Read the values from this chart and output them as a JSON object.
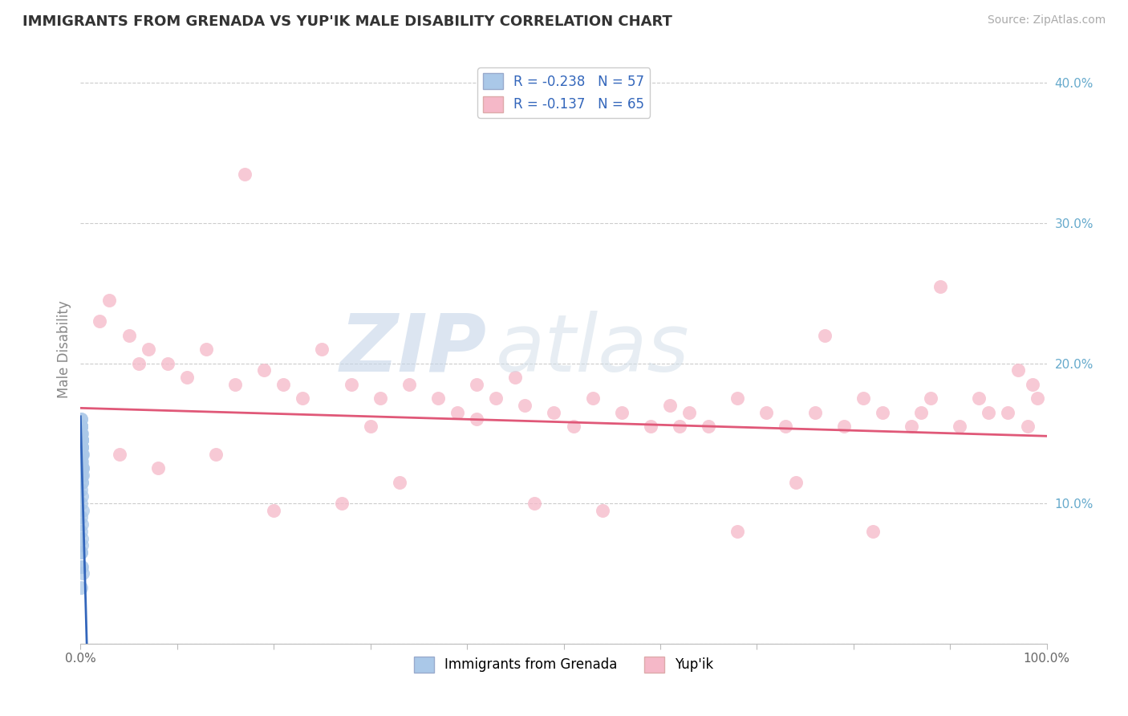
{
  "title": "IMMIGRANTS FROM GRENADA VS YUP'IK MALE DISABILITY CORRELATION CHART",
  "source": "Source: ZipAtlas.com",
  "ylabel": "Male Disability",
  "legend_label_1": "Immigrants from Grenada",
  "legend_label_2": "Yup'ik",
  "r1": -0.238,
  "n1": 57,
  "r2": -0.137,
  "n2": 65,
  "color1": "#aac8e8",
  "color2": "#f5b8c8",
  "line_color1": "#3366bb",
  "line_color2": "#e05878",
  "line_color1_ext": "#99bbdd",
  "xlim": [
    0,
    1.0
  ],
  "ylim": [
    0,
    0.42
  ],
  "xticks": [
    0.0,
    0.1,
    0.2,
    0.3,
    0.4,
    0.5,
    0.6,
    0.7,
    0.8,
    0.9,
    1.0
  ],
  "yticks": [
    0.0,
    0.1,
    0.2,
    0.3,
    0.4
  ],
  "watermark_zip": "ZIP",
  "watermark_atlas": "atlas",
  "pink_trend_start": 0.168,
  "pink_trend_end": 0.148,
  "blue_trend_start_y": 0.162,
  "blue_trend_slope": -25.0,
  "blue_x": [
    0.0005,
    0.0008,
    0.0006,
    0.001,
    0.0007,
    0.0005,
    0.0012,
    0.0008,
    0.001,
    0.0006,
    0.0015,
    0.0009,
    0.0005,
    0.001,
    0.0018,
    0.0007,
    0.0013,
    0.0005,
    0.001,
    0.0008,
    0.0005,
    0.0015,
    0.001,
    0.0007,
    0.0005,
    0.0012,
    0.0008,
    0.001,
    0.002,
    0.0005,
    0.0022,
    0.0008,
    0.001,
    0.0005,
    0.0013,
    0.0016,
    0.0007,
    0.001,
    0.0005,
    0.002,
    0.0007,
    0.001,
    0.0013,
    0.0005,
    0.0016,
    0.0007,
    0.001,
    0.0025,
    0.0005,
    0.0013,
    0.0007,
    0.001,
    0.0005,
    0.002,
    0.0007,
    0.001,
    0.0005
  ],
  "blue_y": [
    0.155,
    0.145,
    0.14,
    0.135,
    0.15,
    0.13,
    0.14,
    0.155,
    0.145,
    0.16,
    0.13,
    0.15,
    0.16,
    0.14,
    0.125,
    0.155,
    0.145,
    0.12,
    0.135,
    0.14,
    0.11,
    0.145,
    0.15,
    0.125,
    0.155,
    0.14,
    0.13,
    0.115,
    0.12,
    0.145,
    0.135,
    0.15,
    0.125,
    0.1,
    0.135,
    0.12,
    0.155,
    0.145,
    0.09,
    0.125,
    0.08,
    0.105,
    0.07,
    0.14,
    0.115,
    0.065,
    0.085,
    0.095,
    0.055,
    0.075,
    0.065,
    0.055,
    0.04,
    0.05,
    0.155,
    0.145,
    0.15
  ],
  "pink_x": [
    0.02,
    0.03,
    0.05,
    0.07,
    0.09,
    0.11,
    0.13,
    0.16,
    0.19,
    0.21,
    0.23,
    0.25,
    0.28,
    0.31,
    0.3,
    0.34,
    0.37,
    0.39,
    0.41,
    0.43,
    0.46,
    0.49,
    0.51,
    0.53,
    0.56,
    0.59,
    0.61,
    0.63,
    0.65,
    0.68,
    0.71,
    0.73,
    0.76,
    0.79,
    0.81,
    0.83,
    0.86,
    0.87,
    0.91,
    0.93,
    0.96,
    0.98,
    0.99,
    0.04,
    0.08,
    0.14,
    0.2,
    0.27,
    0.33,
    0.41,
    0.47,
    0.54,
    0.62,
    0.68,
    0.74,
    0.82,
    0.88,
    0.94,
    0.985,
    0.06,
    0.17,
    0.45,
    0.77,
    0.89,
    0.97
  ],
  "pink_y": [
    0.23,
    0.245,
    0.22,
    0.21,
    0.2,
    0.19,
    0.21,
    0.185,
    0.195,
    0.185,
    0.175,
    0.21,
    0.185,
    0.175,
    0.155,
    0.185,
    0.175,
    0.165,
    0.185,
    0.175,
    0.17,
    0.165,
    0.155,
    0.175,
    0.165,
    0.155,
    0.17,
    0.165,
    0.155,
    0.175,
    0.165,
    0.155,
    0.165,
    0.155,
    0.175,
    0.165,
    0.155,
    0.165,
    0.155,
    0.175,
    0.165,
    0.155,
    0.175,
    0.135,
    0.125,
    0.135,
    0.095,
    0.1,
    0.115,
    0.16,
    0.1,
    0.095,
    0.155,
    0.08,
    0.115,
    0.08,
    0.175,
    0.165,
    0.185,
    0.2,
    0.335,
    0.19,
    0.22,
    0.255,
    0.195
  ]
}
